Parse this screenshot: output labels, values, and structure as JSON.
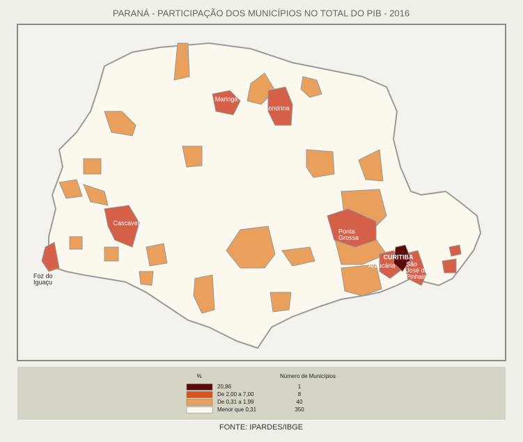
{
  "title": "PARANÁ - PARTICIPAÇÃO DOS MUNICÍPIOS NO TOTAL DO PIB - 2016",
  "cities": [
    {
      "lines": [
        "Maringá"
      ]
    },
    {
      "lines": [
        "Londrina"
      ]
    },
    {
      "lines": [
        "Cascavel"
      ]
    },
    {
      "lines": [
        "Ponta",
        "Grossa"
      ]
    },
    {
      "lines": [
        "Foz do",
        "Iguaçu"
      ]
    },
    {
      "lines": [
        "CURITIBA"
      ]
    },
    {
      "lines": [
        "Araucária"
      ]
    },
    {
      "lines": [
        "São",
        "José dos",
        "Pinhais"
      ]
    }
  ],
  "legend": {
    "header_pct": "%",
    "header_count": "Número de Municípios",
    "rows": [
      {
        "label": "20,86",
        "count": 1,
        "color": "#5c0a0a"
      },
      {
        "label": "De 2,00 a 7,00",
        "count": 8,
        "color": "#d9531e"
      },
      {
        "label": "De 0,31 a 1,99",
        "count": 40,
        "color": "#e9a05c"
      },
      {
        "label": "Menor que 0,31",
        "count": 350,
        "color": "#fdf9ef"
      }
    ]
  },
  "source": "FONTE: IPARDES/IBGE"
}
